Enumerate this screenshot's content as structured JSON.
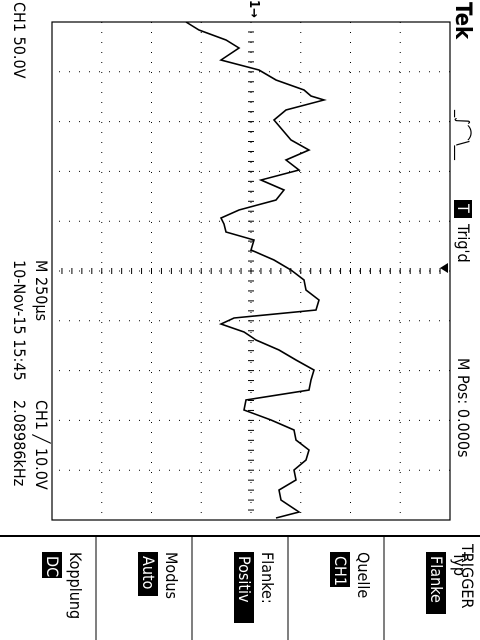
{
  "brand": "Tek",
  "trigger_state": "Trig'd",
  "trigger_mark": "T",
  "trigger_icon": "edge-trigger-icon",
  "channel_marker": "1",
  "ch1_scale": "CH1  50.0V",
  "timebase": "M 250µs",
  "date_time": "10-Nov-15 15:45",
  "m_pos": "M Pos: 0.000s",
  "trigger_level": "CH1  ╱ 10.0V",
  "frequency": "2.08986kHz",
  "menu": {
    "title": "TRIGGER",
    "items": [
      {
        "label": "Typ",
        "value": "Flanke"
      },
      {
        "label": "Quelle",
        "value": "CH1"
      },
      {
        "label": "Flanke:",
        "value": "Positiv"
      },
      {
        "label": "Modus",
        "value": "Auto"
      },
      {
        "label": "Kopplung",
        "value": "DC"
      }
    ]
  }
}
